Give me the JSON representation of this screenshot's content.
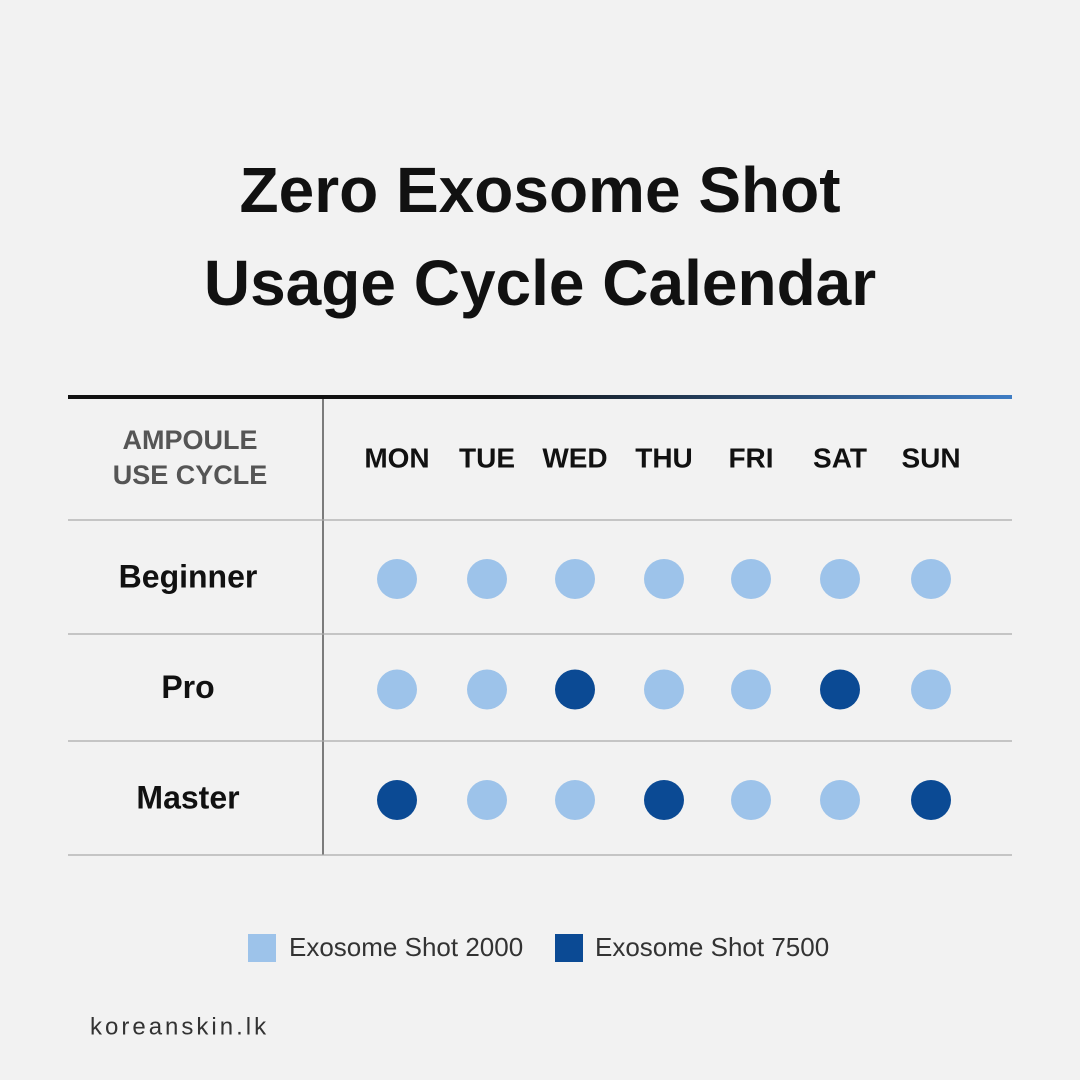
{
  "title": [
    "Zero Exosome Shot",
    "Usage Cycle Calendar"
  ],
  "table": {
    "corner": [
      "AMPOULE",
      "USE CYCLE"
    ],
    "days": [
      "MON",
      "TUE",
      "WED",
      "THU",
      "FRI",
      "SAT",
      "SUN"
    ],
    "rows": [
      {
        "name": "Beginner",
        "cells": [
          0,
          0,
          0,
          0,
          0,
          0,
          0
        ]
      },
      {
        "name": "Pro",
        "cells": [
          0,
          0,
          1,
          0,
          0,
          1,
          0
        ]
      },
      {
        "name": "Master",
        "cells": [
          1,
          0,
          0,
          1,
          0,
          0,
          1
        ]
      }
    ]
  },
  "legend": [
    {
      "label": "Exosome Shot 2000",
      "color": "#9dc3ea"
    },
    {
      "label": "Exosome Shot 7500",
      "color": "#0b4a94"
    }
  ],
  "footer": "koreanskin.lk"
}
